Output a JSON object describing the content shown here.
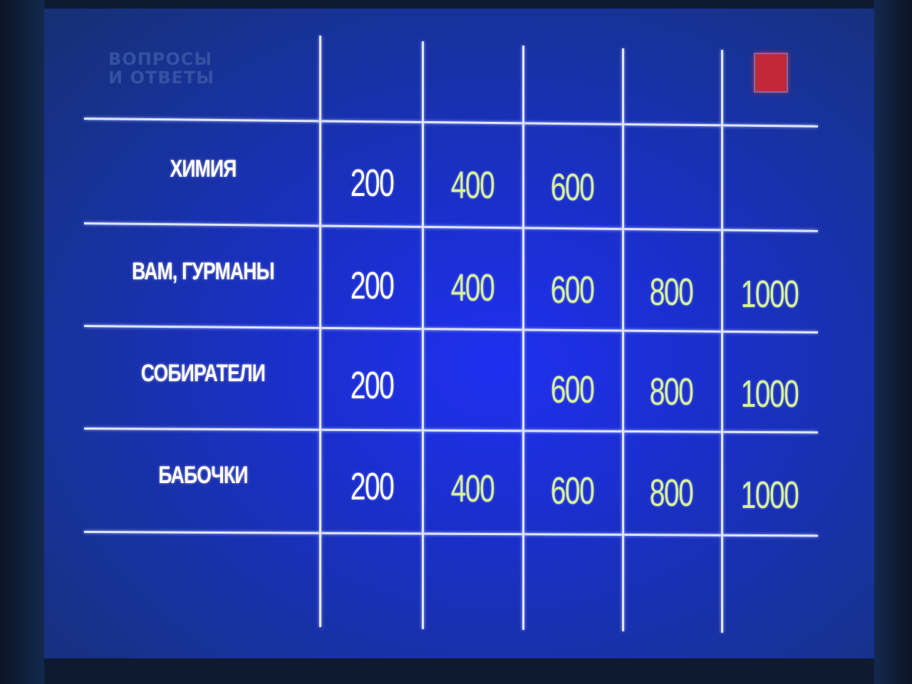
{
  "logo": {
    "line1": "ВОПРОСЫ",
    "line2": "И ОТВЕТЫ"
  },
  "colors": {
    "background": "#1a2fc8",
    "grid": "#dfe6ff",
    "marker": "#c22838",
    "value_200": "#ffffff",
    "value_other": "#d6f29a"
  },
  "board": {
    "rows": [
      {
        "category": "ХИМИЯ",
        "values": [
          "200",
          "400",
          "600",
          "",
          ""
        ]
      },
      {
        "category": "ВАМ, ГУРМАНЫ",
        "values": [
          "200",
          "400",
          "600",
          "800",
          "1000"
        ]
      },
      {
        "category": "СОБИРАТЕЛИ",
        "values": [
          "200",
          "",
          "600",
          "800",
          "1000"
        ]
      },
      {
        "category": "БАБОЧКИ",
        "values": [
          "200",
          "400",
          "600",
          "800",
          "1000"
        ]
      }
    ]
  }
}
